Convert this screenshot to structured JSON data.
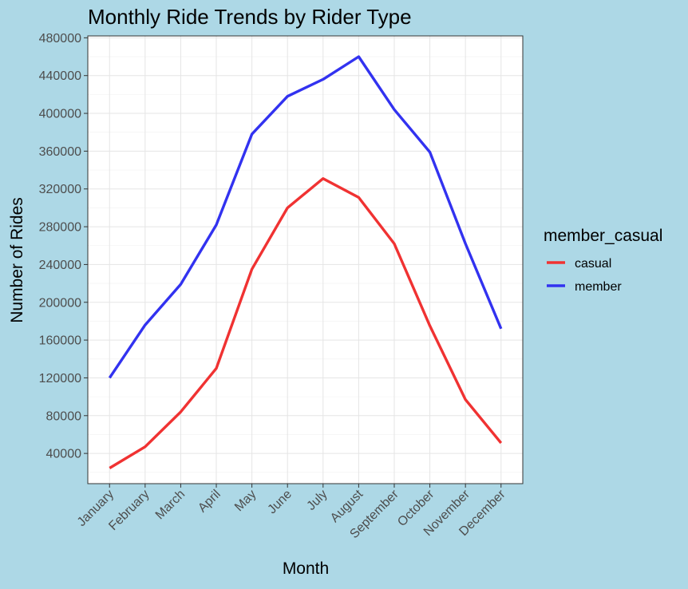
{
  "chart_data": {
    "type": "line",
    "title": "Monthly Ride Trends by Rider Type",
    "xlabel": "Month",
    "ylabel": "Number of Rides",
    "categories": [
      "January",
      "February",
      "March",
      "April",
      "May",
      "June",
      "July",
      "August",
      "September",
      "October",
      "November",
      "December"
    ],
    "yticks": [
      40000,
      80000,
      120000,
      160000,
      200000,
      240000,
      280000,
      320000,
      360000,
      400000,
      440000,
      480000
    ],
    "ylim": [
      8000,
      482000
    ],
    "grid": true,
    "legend": {
      "title": "member_casual",
      "placement": "right"
    },
    "series": [
      {
        "name": "casual",
        "color": "#f03232",
        "values": [
          24500,
          47000,
          84000,
          130000,
          235000,
          300000,
          331000,
          311000,
          262000,
          175000,
          97000,
          51000
        ]
      },
      {
        "name": "member",
        "color": "#3232f0",
        "values": [
          120000,
          176000,
          219000,
          282000,
          378000,
          418000,
          436000,
          460000,
          404000,
          359000,
          262000,
          172000
        ]
      }
    ]
  }
}
